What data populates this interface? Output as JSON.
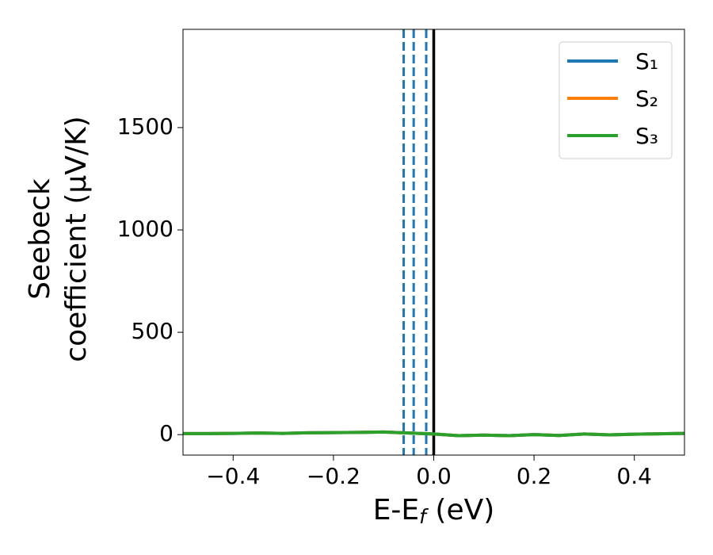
{
  "chart_data": {
    "type": "line",
    "xlabel": [
      "E-E",
      "f",
      " (eV)"
    ],
    "ylabel": [
      "Seebeck",
      "coefficient  (μV/K)"
    ],
    "x": [
      -0.5,
      -0.45,
      -0.4,
      -0.35,
      -0.3,
      -0.25,
      -0.2,
      -0.15,
      -0.1,
      -0.05,
      0,
      0.05,
      0.1,
      0.15,
      0.2,
      0.25,
      0.3,
      0.35,
      0.4,
      0.45,
      0.5
    ],
    "series": [
      {
        "name": "S₁",
        "color": "#1f77b4",
        "values": [
          5,
          5,
          6,
          8,
          6,
          9,
          10,
          11,
          13,
          8,
          3,
          -5,
          -2,
          -5,
          0,
          -4,
          3,
          -1,
          2,
          4,
          6
        ]
      },
      {
        "name": "S₂",
        "color": "#ff7f0e",
        "values": [
          5,
          5,
          6,
          8,
          6,
          9,
          10,
          11,
          13,
          8,
          3,
          -5,
          -2,
          -5,
          0,
          -4,
          3,
          -1,
          2,
          4,
          6
        ]
      },
      {
        "name": "S₃",
        "color": "#2ca02c",
        "values": [
          5,
          5,
          6,
          8,
          6,
          9,
          10,
          11,
          13,
          8,
          3,
          -5,
          -2,
          -5,
          0,
          -4,
          3,
          -1,
          2,
          4,
          6
        ]
      }
    ],
    "vlines": [
      {
        "x": -0.06,
        "color": "#1f77b4",
        "dashed": true
      },
      {
        "x": -0.04,
        "color": "#1f77b4",
        "dashed": true
      },
      {
        "x": -0.015,
        "color": "#1f77b4",
        "dashed": true
      },
      {
        "x": 0,
        "color": "#000000",
        "dashed": false
      }
    ],
    "xlim": [
      -0.5,
      0.5
    ],
    "ylim": [
      -100,
      1980
    ],
    "xticks": [
      {
        "value": -0.4,
        "label": "−0.4"
      },
      {
        "value": -0.2,
        "label": "−0.2"
      },
      {
        "value": 0,
        "label": "0.0"
      },
      0.2,
      0.4
    ],
    "yticks": [
      0,
      500,
      1000,
      1500
    ],
    "legend": "upper right"
  }
}
